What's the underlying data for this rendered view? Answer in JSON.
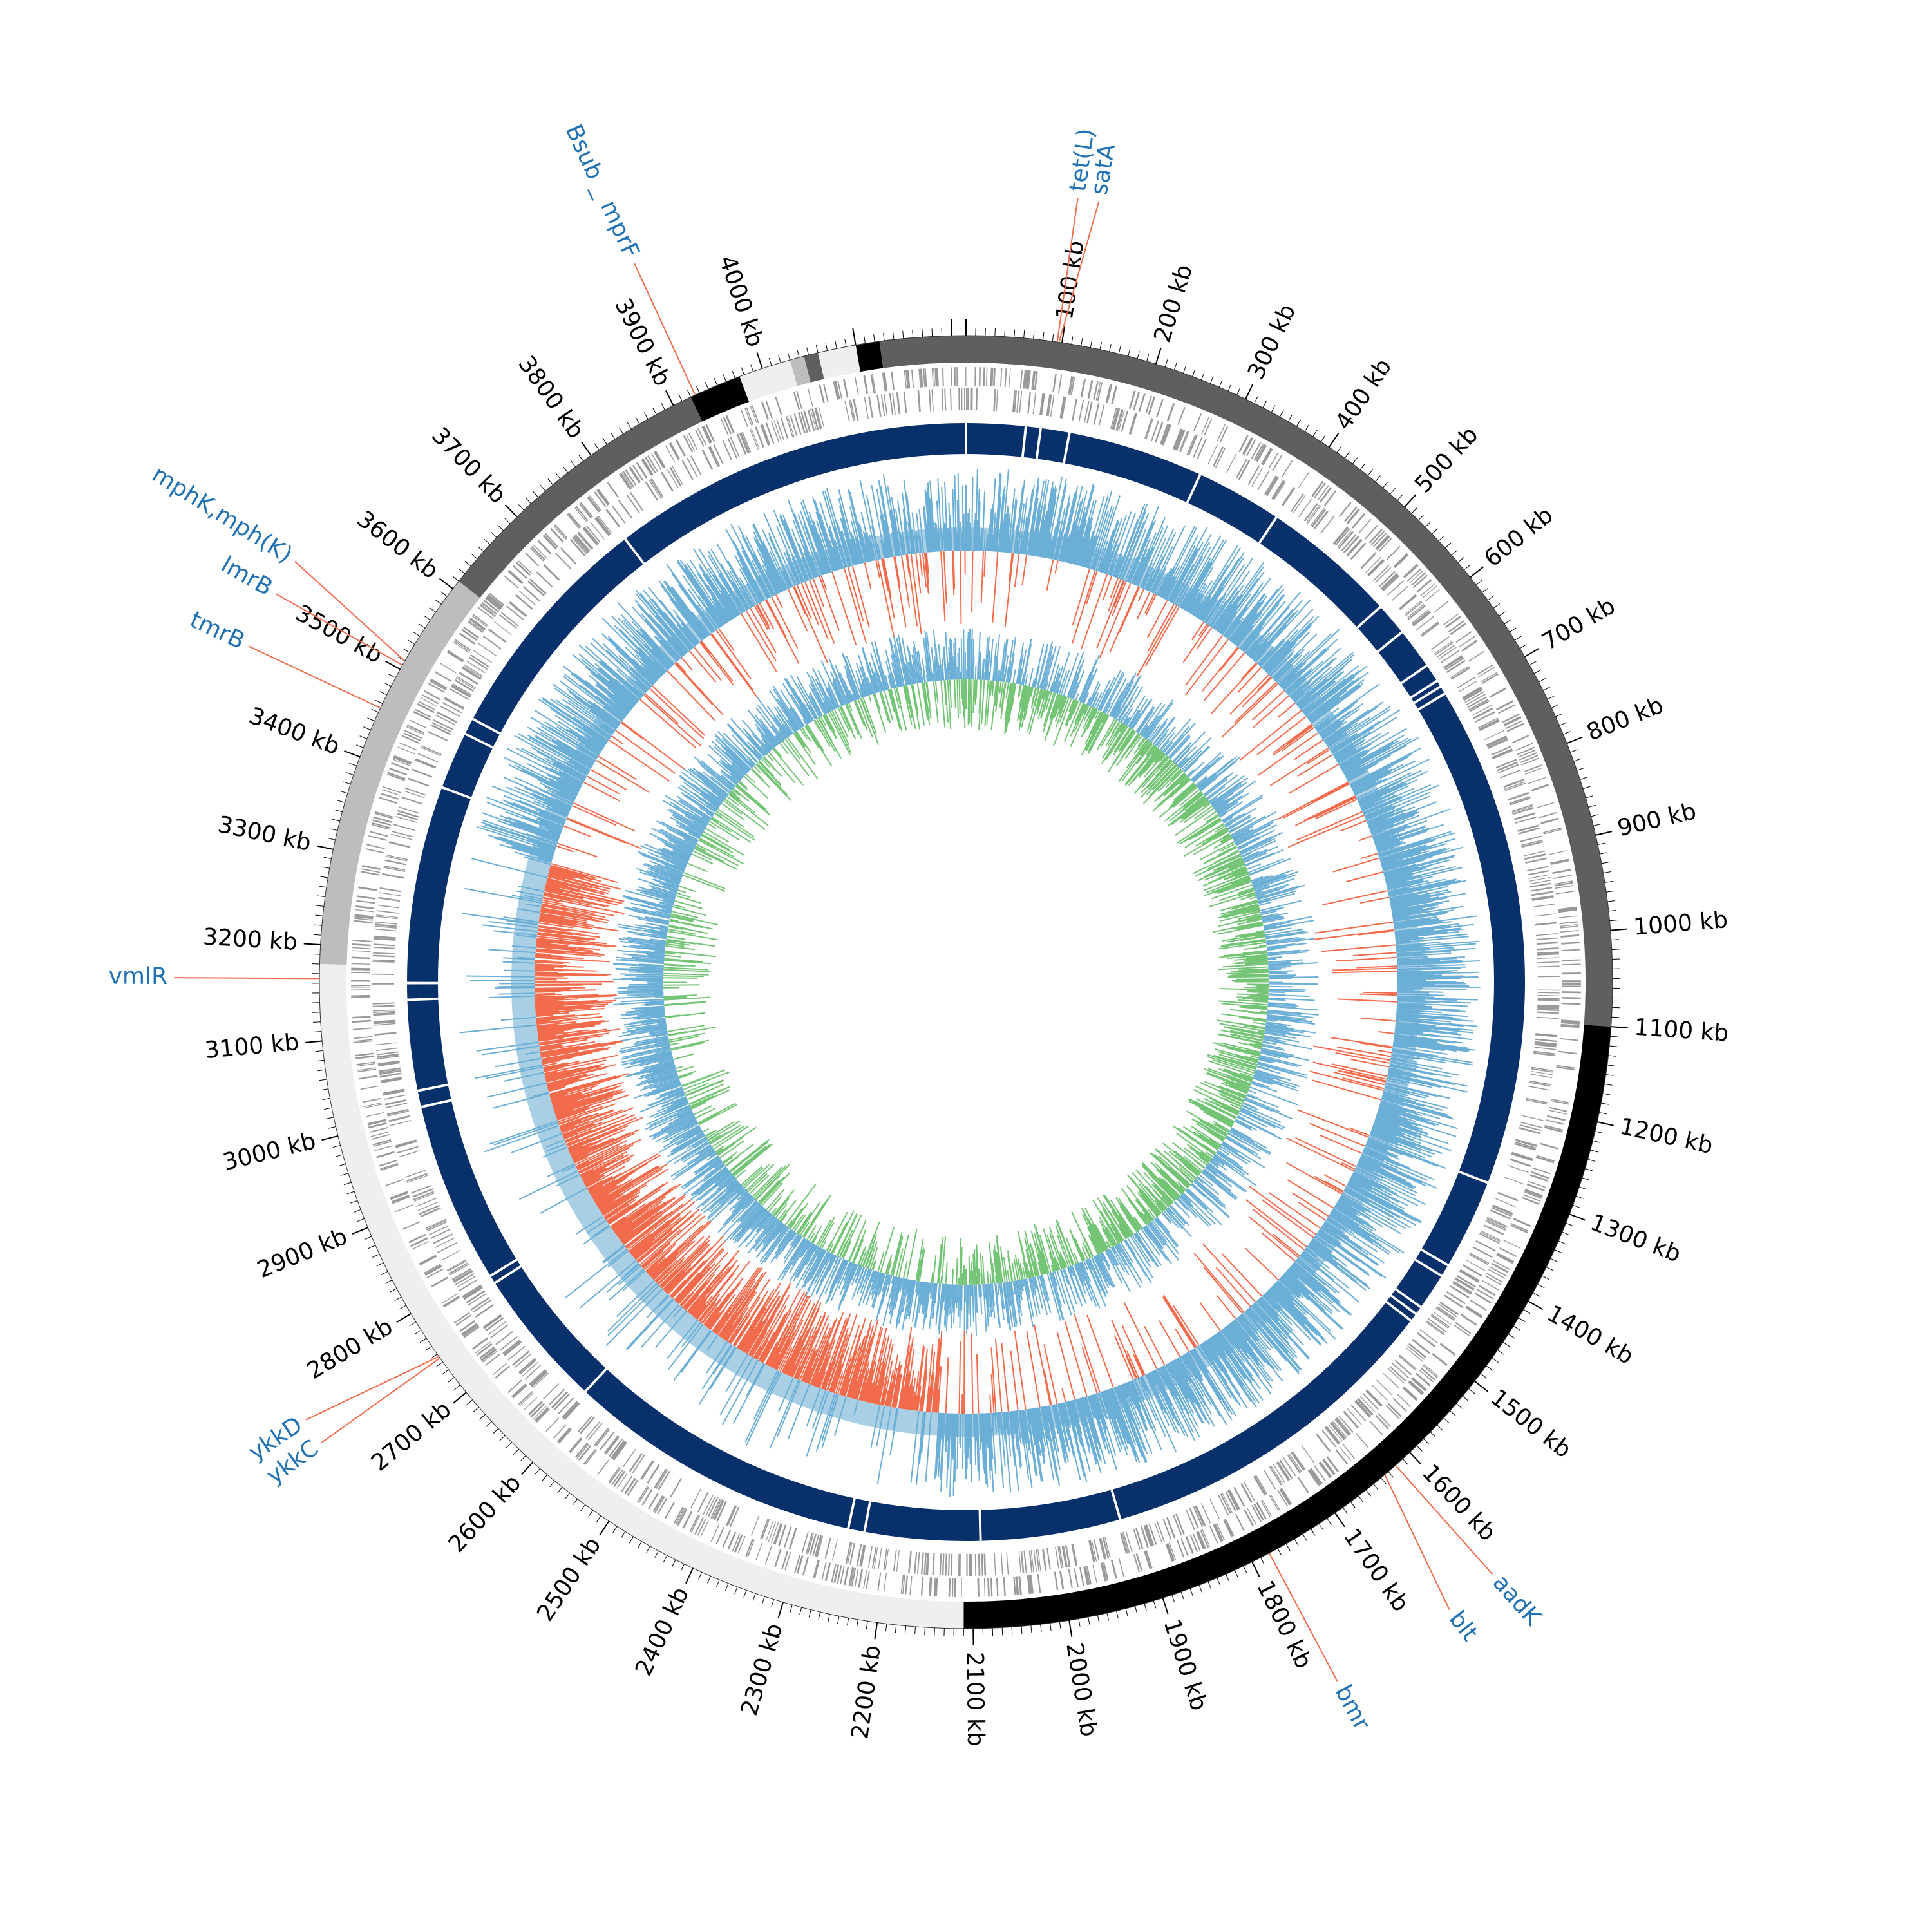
{
  "diagram": {
    "type": "circular-genome-map",
    "genome_length_kb": 4215,
    "tick_step_kb": 100,
    "tick_unit": "kb",
    "tick_labels": [
      "100 kb",
      "200 kb",
      "300 kb",
      "400 kb",
      "500 kb",
      "600 kb",
      "700 kb",
      "800 kb",
      "900 kb",
      "1000 kb",
      "1100 kb",
      "1200 kb",
      "1300 kb",
      "1400 kb",
      "1500 kb",
      "1600 kb",
      "1700 kb",
      "1800 kb",
      "1900 kb",
      "2000 kb",
      "2100 kb",
      "2200 kb",
      "2300 kb",
      "2400 kb",
      "2500 kb",
      "2600 kb",
      "2700 kb",
      "2800 kb",
      "2900 kb",
      "3000 kb",
      "3100 kb",
      "3200 kb",
      "3300 kb",
      "3400 kb",
      "3500 kb",
      "3600 kb",
      "3700 kb",
      "3800 kb",
      "3900 kb",
      "4000 kb"
    ],
    "contigs_kb": [
      {
        "start": 0,
        "end": 1100,
        "color": "#5f5f5f"
      },
      {
        "start": 1100,
        "end": 2110,
        "color": "#000000"
      },
      {
        "start": 2110,
        "end": 3180,
        "color": "#efefef"
      },
      {
        "start": 3180,
        "end": 3610,
        "color": "#bdbdbd"
      },
      {
        "start": 3610,
        "end": 3920,
        "color": "#5f5f5f"
      },
      {
        "start": 3920,
        "end": 3975,
        "color": "#000000"
      },
      {
        "start": 3975,
        "end": 4030,
        "color": "#efefef"
      },
      {
        "start": 4030,
        "end": 4045,
        "color": "#bdbdbd"
      },
      {
        "start": 4045,
        "end": 4060,
        "color": "#5f5f5f"
      },
      {
        "start": 4060,
        "end": 4100,
        "color": "#efefef"
      },
      {
        "start": 4100,
        "end": 4125,
        "color": "#000000"
      },
      {
        "start": 4125,
        "end": 4215,
        "color": "#5f5f5f"
      }
    ],
    "resistance_genes": [
      {
        "label": "tet(L)",
        "position_kb": 95
      },
      {
        "label": "satA",
        "position_kb": 97
      },
      {
        "label": "aadK",
        "position_kb": 1620
      },
      {
        "label": "blt",
        "position_kb": 1635
      },
      {
        "label": "bmr",
        "position_kb": 1780
      },
      {
        "label": "ykkC",
        "position_kb": 2745
      },
      {
        "label": "ykkD",
        "position_kb": 2747
      },
      {
        "label": "vmlR",
        "position_kb": 3165
      },
      {
        "label": "tmrB",
        "position_kb": 3455
      },
      {
        "label": "lmrB",
        "position_kb": 3505
      },
      {
        "label": "mphK,mph(K)",
        "position_kb": 3510
      },
      {
        "label": "Bsub _ mprF",
        "position_kb": 3925
      }
    ],
    "colors": {
      "gc_content_positive": "#6baed6",
      "gc_content_fill": "#9ecae1",
      "gc_content_negative": "#f26b4c",
      "gc_skew_positive": "#6baed6",
      "gc_skew_negative": "#74c476",
      "blast_hit": "#08306b",
      "cds": "#999999",
      "gene_label": "#2171b5",
      "gene_pointer": "#f26b4c"
    }
  }
}
